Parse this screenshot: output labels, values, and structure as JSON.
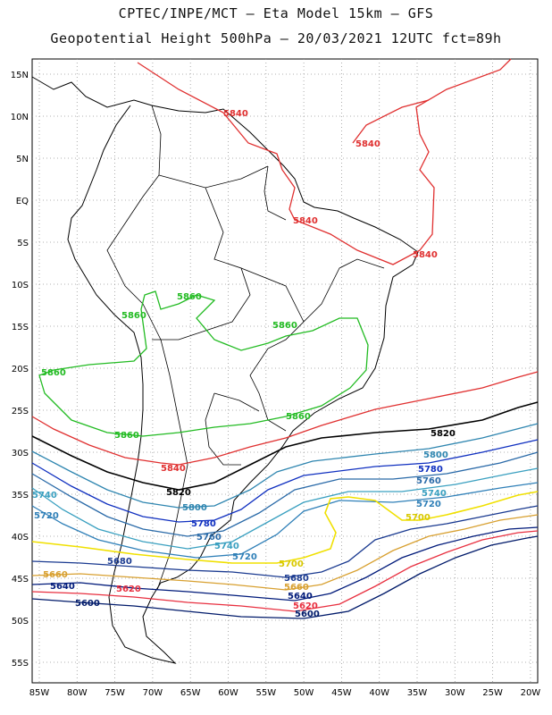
{
  "header": {
    "line1": "CPTEC/INPE/MCT –  Eta Model 15km – GFS",
    "line2": "Geopotential Height 500hPa – 20/03/2021 12UTC fct=89h"
  },
  "axes": {
    "lat_labels": [
      "15N",
      "10N",
      "5N",
      "EQ",
      "5S",
      "10S",
      "15S",
      "20S",
      "25S",
      "30S",
      "35S",
      "40S",
      "45S",
      "50S",
      "55S"
    ],
    "lon_labels": [
      "85W",
      "80W",
      "75W",
      "70W",
      "65W",
      "60W",
      "55W",
      "50W",
      "45W",
      "40W",
      "35W",
      "30W",
      "25W",
      "20W"
    ]
  },
  "contours": [
    {
      "level": "5840",
      "color": "#e03030",
      "labels": [
        "5840",
        "5840",
        "5840",
        "5840",
        "5840"
      ]
    },
    {
      "level": "5860",
      "color": "#22bb22",
      "labels": [
        "5860",
        "5860",
        "5860",
        "5860",
        "5860",
        "5860"
      ]
    },
    {
      "level": "5820",
      "color": "#000000",
      "labels": [
        "5820",
        "5820"
      ]
    },
    {
      "level": "5800",
      "color": "#2f86b0",
      "labels": [
        "5800",
        "5800"
      ]
    },
    {
      "level": "5780",
      "color": "#1030c0",
      "labels": [
        "5780",
        "5780"
      ]
    },
    {
      "level": "5760",
      "color": "#2a6aa8",
      "labels": [
        "5760",
        "5760"
      ]
    },
    {
      "level": "5740",
      "color": "#3aa0c0",
      "labels": [
        "5740",
        "5740",
        "5740"
      ]
    },
    {
      "level": "5720",
      "color": "#3080b8",
      "labels": [
        "5720",
        "5720",
        "5720"
      ]
    },
    {
      "level": "5700",
      "color": "#f0e000",
      "labels": [
        "5700",
        "5700"
      ]
    },
    {
      "level": "5680",
      "color": "#1a3a90",
      "labels": [
        "5680",
        "5680"
      ]
    },
    {
      "level": "5660",
      "color": "#d8a030",
      "labels": [
        "5660",
        "5660"
      ]
    },
    {
      "level": "5640",
      "color": "#001a7a",
      "labels": [
        "5640",
        "5640"
      ]
    },
    {
      "level": "5620",
      "color": "#e83040",
      "labels": [
        "5620",
        "5620"
      ]
    },
    {
      "level": "5600",
      "color": "#001a6a",
      "labels": [
        "5600",
        "5600"
      ]
    }
  ]
}
